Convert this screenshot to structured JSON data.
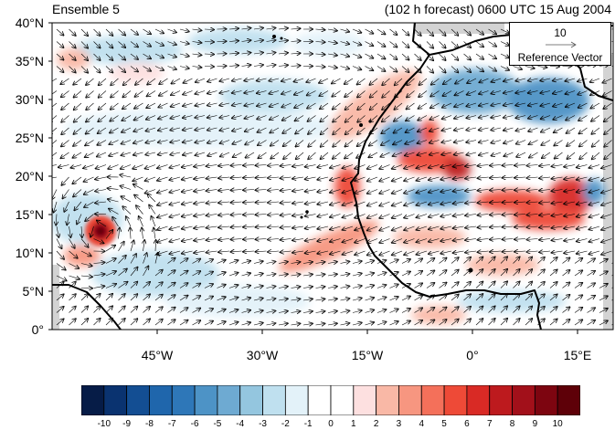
{
  "header": {
    "left_title": "Ensemble 5",
    "right_title": "(102 h forecast) 0600 UTC 15 Aug 2004"
  },
  "reference_vector": {
    "magnitude": "10",
    "label": "Reference Vector"
  },
  "axes": {
    "y_ticks": [
      "40°N",
      "35°N",
      "30°N",
      "25°N",
      "20°N",
      "15°N",
      "10°N",
      "5°N",
      "0°"
    ],
    "x_ticks": [
      "45°W",
      "30°W",
      "15°W",
      "0°",
      "15°E"
    ],
    "lon_range": [
      -60,
      20
    ],
    "lat_range": [
      0,
      40
    ]
  },
  "colorbar": {
    "labels": [
      "-10",
      "-9",
      "-8",
      "-7",
      "-6",
      "-5",
      "-4",
      "-3",
      "-2",
      "-1",
      "0",
      "1",
      "2",
      "3",
      "4",
      "5",
      "6",
      "7",
      "8",
      "9",
      "10"
    ],
    "colors": [
      "#061c47",
      "#0a3370",
      "#134e93",
      "#1f66ac",
      "#2e77b8",
      "#4d93c6",
      "#6eaad2",
      "#94c6df",
      "#bfe0ef",
      "#e3f2f9",
      "#ffffff",
      "#ffffff",
      "#fde0e0",
      "#f9b8a6",
      "#f79680",
      "#f4705a",
      "#ee4a37",
      "#d92a25",
      "#bd1a1e",
      "#a2101a",
      "#7d0510",
      "#5e0008"
    ]
  },
  "colors": {
    "ocean_bg": "#ffffff",
    "missing": "#d3d3d3",
    "coast": "#000000"
  }
}
